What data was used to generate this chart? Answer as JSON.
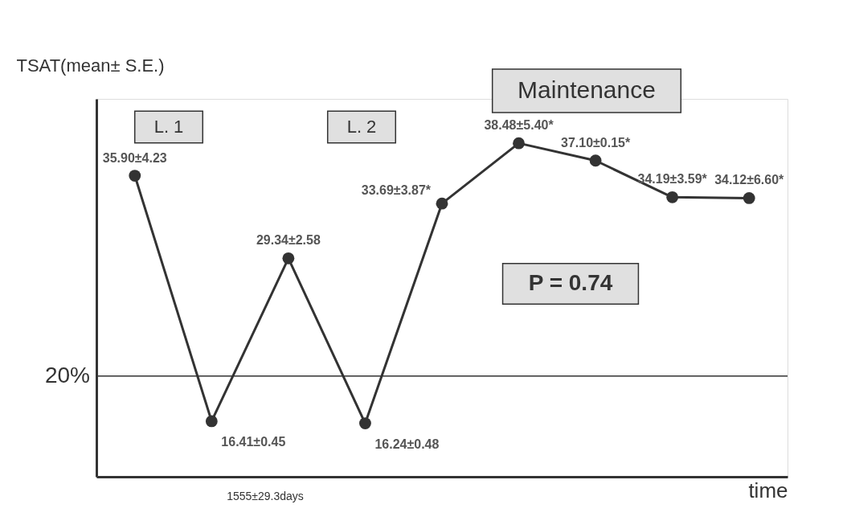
{
  "chart_data": {
    "type": "line",
    "xlabel": "time",
    "ylabel": "TSAT(mean± S.E.)",
    "categories": [
      null,
      null,
      null,
      null,
      null,
      null,
      null,
      null,
      null
    ],
    "series": [
      {
        "color": "#333333",
        "values": [
          35.9,
          16.41,
          29.34,
          16.24,
          33.69,
          38.48,
          37.1,
          34.19,
          34.12
        ],
        "value_labels": [
          "35.90±4.23",
          "16.41±0.45",
          "29.34±2.58",
          "16.24±0.48",
          "33.69±3.87*",
          "38.48±5.40*",
          "37.10±0.15*",
          "34.19±3.59*",
          "34.12±6.60*"
        ]
      }
    ],
    "ylim": [
      12,
      42
    ],
    "marker": "circle",
    "line_style": "solid",
    "ref_lines": [
      {
        "axis": "y",
        "value": 20,
        "label": "20%",
        "color": "#333333"
      }
    ],
    "annotations": [
      "Maintenance",
      "L. 1",
      "L. 2",
      "P = 0.74",
      "1555±29.3days"
    ]
  }
}
